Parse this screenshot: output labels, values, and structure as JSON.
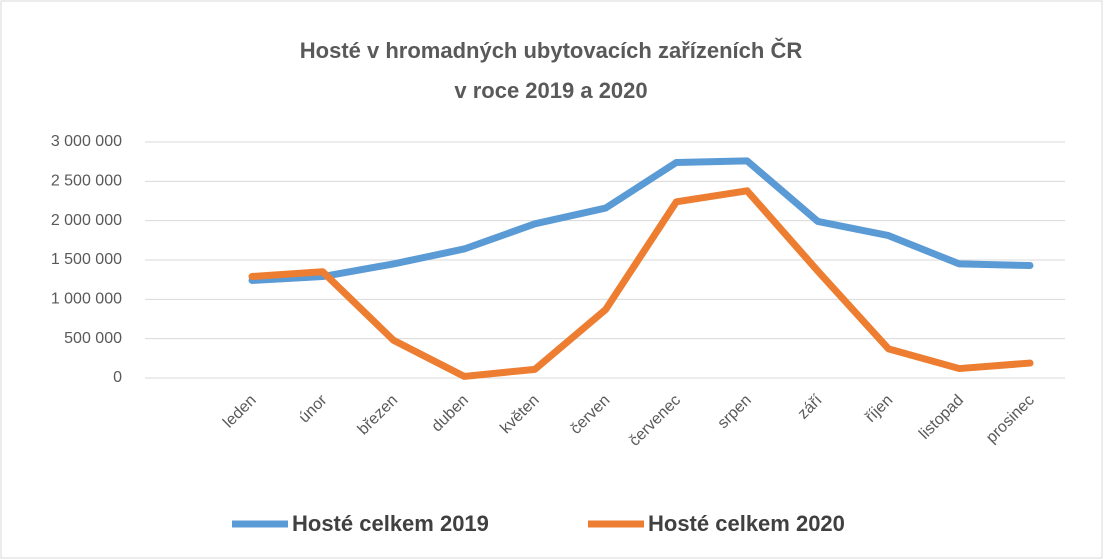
{
  "chart_data": {
    "type": "line",
    "title": [
      "Hosté v hromadných ubytovacích zařízeních ČR",
      "v roce 2019 a 2020"
    ],
    "categories": [
      "leden",
      "únor",
      "březen",
      "duben",
      "květen",
      "červen",
      "červenec",
      "srpen",
      "září",
      "říjen",
      "listopad",
      "prosinec"
    ],
    "series": [
      {
        "name": "Hosté celkem 2019",
        "color": "#5b9bd5",
        "values": [
          1240000,
          1290000,
          1450000,
          1640000,
          1960000,
          2160000,
          2740000,
          2760000,
          1990000,
          1810000,
          1450000,
          1430000
        ]
      },
      {
        "name": "Hosté celkem 2020",
        "color": "#ed7d31",
        "values": [
          1290000,
          1350000,
          480000,
          20000,
          110000,
          870000,
          2240000,
          2380000,
          1360000,
          370000,
          120000,
          190000
        ]
      }
    ],
    "ylim": [
      0,
      3000000
    ],
    "yticks": [
      0,
      {
        "value": 500000,
        "label": "500 000"
      },
      {
        "value": 1000000,
        "label": "1 000 000"
      },
      {
        "value": 1500000,
        "label": "1 500 000"
      },
      {
        "value": 2000000,
        "label": "2 000 000"
      },
      {
        "value": 2500000,
        "label": "2 500 000"
      },
      {
        "value": 3000000,
        "label": "3 000 000"
      }
    ],
    "grid": true,
    "legend": "bottom"
  }
}
